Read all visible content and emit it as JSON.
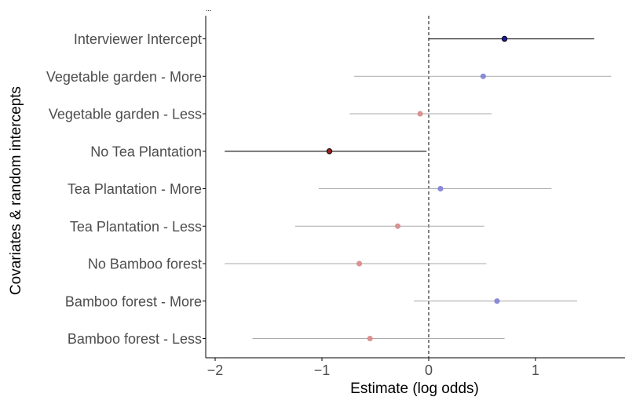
{
  "corner_mark": "...",
  "chart_data": {
    "type": "forest",
    "title": "",
    "xlabel": "Estimate (log odds)",
    "ylabel": "Covariates & random intercepts",
    "xlim": [
      -2.1,
      1.85
    ],
    "xticks": [
      -2,
      -1,
      0,
      1
    ],
    "xtick_labels": [
      "−2",
      "−1",
      "0",
      "1"
    ],
    "reference_line": 0,
    "grid": false,
    "rows": [
      {
        "label": "Interviewer Intercept",
        "estimate": 0.71,
        "low": 0.0,
        "high": 1.55,
        "significant": true,
        "direction": "positive"
      },
      {
        "label": "Vegetable garden - More",
        "estimate": 0.51,
        "low": -0.7,
        "high": 1.71,
        "significant": false,
        "direction": "positive"
      },
      {
        "label": "Vegetable garden - Less",
        "estimate": -0.08,
        "low": -0.74,
        "high": 0.59,
        "significant": false,
        "direction": "negative"
      },
      {
        "label": "No Tea Plantation",
        "estimate": -0.93,
        "low": -1.91,
        "high": -0.02,
        "significant": true,
        "direction": "negative"
      },
      {
        "label": "Tea Plantation - More",
        "estimate": 0.11,
        "low": -1.03,
        "high": 1.15,
        "significant": false,
        "direction": "positive"
      },
      {
        "label": "Tea Plantation - Less",
        "estimate": -0.29,
        "low": -1.25,
        "high": 0.52,
        "significant": false,
        "direction": "negative"
      },
      {
        "label": "No Bamboo forest",
        "estimate": -0.65,
        "low": -1.91,
        "high": 0.54,
        "significant": false,
        "direction": "negative"
      },
      {
        "label": "Bamboo forest - More",
        "estimate": 0.64,
        "low": -0.14,
        "high": 1.39,
        "significant": false,
        "direction": "positive"
      },
      {
        "label": "Bamboo forest - Less",
        "estimate": -0.55,
        "low": -1.65,
        "high": 0.71,
        "significant": false,
        "direction": "negative"
      }
    ],
    "colors": {
      "positive": "#1a1aa6",
      "negative": "#a31d1d",
      "positive_faded": "#8080d6",
      "negative_faded": "#d98888",
      "line_strong": "#222222",
      "line_faded": "#aaaaaa",
      "axis": "#000000"
    }
  }
}
